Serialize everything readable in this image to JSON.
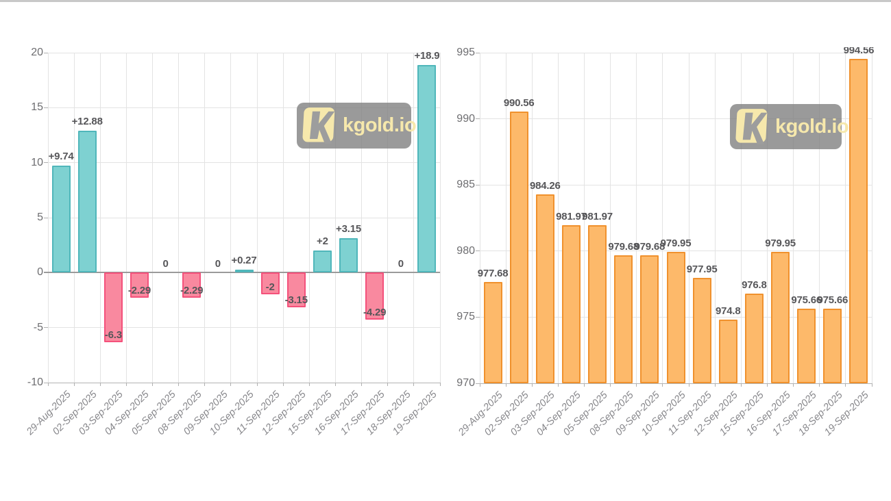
{
  "page": {
    "background": "#ffffff",
    "top_strip_color": "#c8c8c8"
  },
  "watermark": {
    "text": "kgold.io",
    "icon": "kgold-k-icon",
    "panel_color": "rgba(125,125,125,0.78)",
    "accent_color": "#f6e8ac",
    "glyph_color": "#9d9d9d"
  },
  "chart_data": [
    {
      "type": "bar",
      "panel": "left",
      "description_visible_text_only": "",
      "categories": [
        "29-Aug-2025",
        "02-Sep-2025",
        "03-Sep-2025",
        "04-Sep-2025",
        "05-Sep-2025",
        "08-Sep-2025",
        "09-Sep-2025",
        "10-Sep-2025",
        "11-Sep-2025",
        "12-Sep-2025",
        "15-Sep-2025",
        "16-Sep-2025",
        "17-Sep-2025",
        "18-Sep-2025",
        "19-Sep-2025"
      ],
      "values": [
        9.74,
        12.88,
        -6.3,
        -2.29,
        0,
        -2.29,
        0,
        0.27,
        -2,
        -3.15,
        2,
        3.15,
        -4.29,
        0,
        18.9
      ],
      "bar_labels": [
        "+9.74",
        "+12.88",
        "-6.3",
        "-2.29",
        "0",
        "-2.29",
        "0",
        "+0.27",
        "-2",
        "-3.15",
        "+2",
        "+3.15",
        "-4.29",
        "0",
        "+18.9"
      ],
      "ylim": [
        -10,
        20
      ],
      "yticks": [
        20,
        15,
        10,
        5,
        0,
        -5,
        -10
      ],
      "baseline": 0,
      "hide_baseline_bars": true,
      "zero_line": true,
      "grid": true,
      "legend": "none",
      "colors": {
        "positive_fill": "#7ed1d1",
        "positive_border": "#4fb6ba",
        "negative_fill": "#f9899f",
        "negative_border": "#f4517b"
      }
    },
    {
      "type": "bar",
      "panel": "right",
      "categories": [
        "29-Aug-2025",
        "02-Sep-2025",
        "03-Sep-2025",
        "04-Sep-2025",
        "05-Sep-2025",
        "08-Sep-2025",
        "09-Sep-2025",
        "10-Sep-2025",
        "11-Sep-2025",
        "12-Sep-2025",
        "15-Sep-2025",
        "16-Sep-2025",
        "17-Sep-2025",
        "18-Sep-2025",
        "19-Sep-2025"
      ],
      "values": [
        977.68,
        990.56,
        984.26,
        981.97,
        981.97,
        979.68,
        979.68,
        979.95,
        977.95,
        974.8,
        976.8,
        979.95,
        975.66,
        975.66,
        994.56
      ],
      "bar_labels": [
        "977.68",
        "990.56",
        "984.26",
        "981.97",
        "981.97",
        "979.68",
        "979.68",
        "979.95",
        "977.95",
        "974.8",
        "976.8",
        "979.95",
        "975.66",
        "975.66",
        "994.56"
      ],
      "ylim": [
        970,
        995
      ],
      "yticks": [
        995,
        990,
        985,
        980,
        975,
        970
      ],
      "baseline": 970,
      "hide_baseline_bars": false,
      "zero_line": false,
      "grid": true,
      "legend": "none",
      "colors": {
        "positive_fill": "#fdb96a",
        "positive_border": "#f0912d",
        "negative_fill": "#fdb96a",
        "negative_border": "#f0912d"
      }
    }
  ]
}
